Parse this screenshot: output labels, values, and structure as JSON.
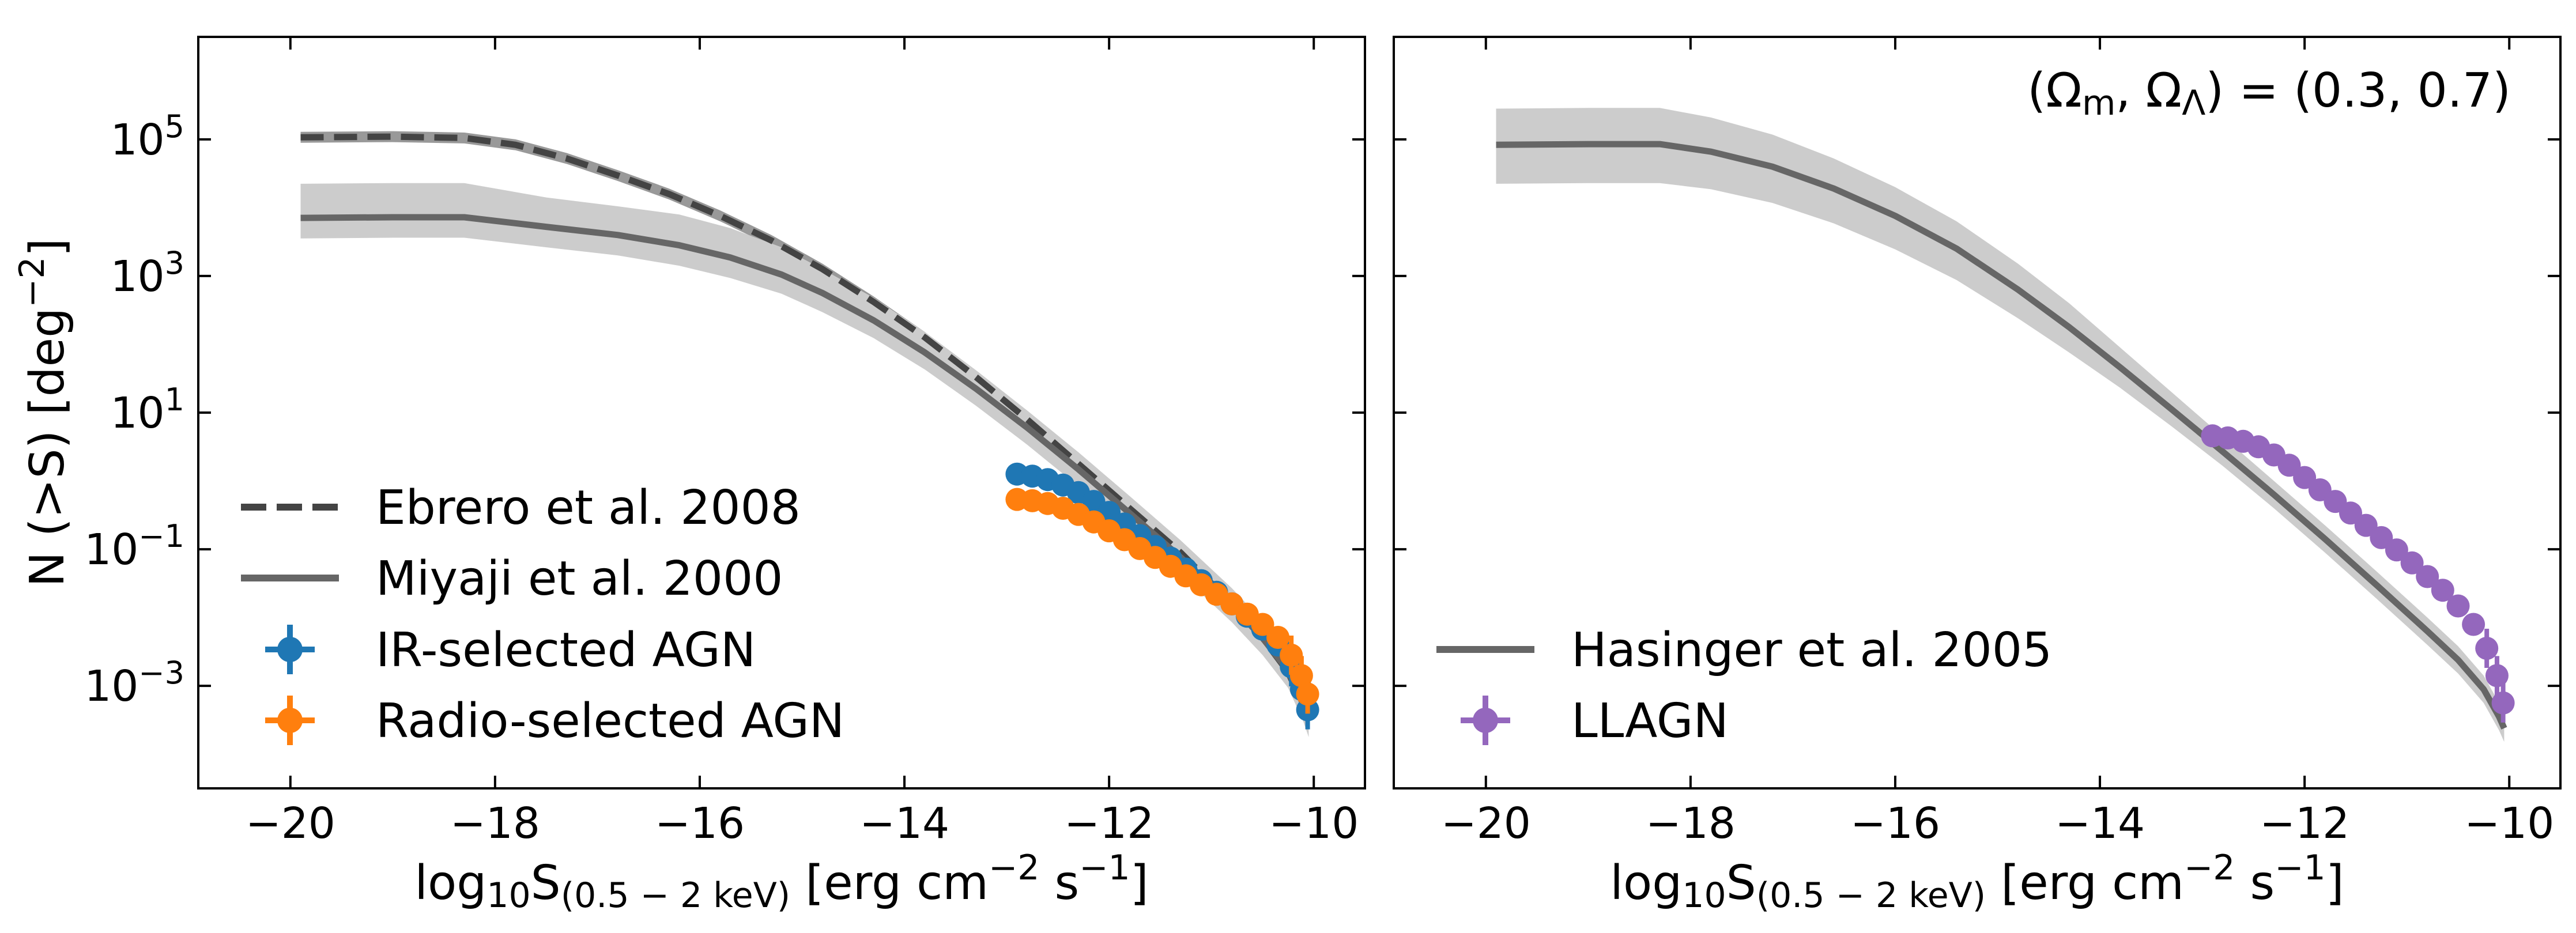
{
  "chart_data": [
    {
      "type": "line",
      "panel": "left",
      "xlabel": "log10S(0.5-2 keV) [erg cm^-2 s^-1]",
      "ylabel": "N (>S) [deg^-2]",
      "xlim": [
        -20.9,
        -9.5
      ],
      "ylim_log10": [
        -4.5,
        6.5
      ],
      "yscale": "log",
      "xticks": [
        -20,
        -18,
        -16,
        -14,
        -12,
        -10
      ],
      "xtick_labels": [
        "−20",
        "−18",
        "−16",
        "−14",
        "−12",
        "−10"
      ],
      "yticks_log10": [
        5,
        3,
        1,
        -1,
        -3
      ],
      "ytick_exponents": [
        "5",
        "3",
        "1",
        "−1",
        "−3"
      ],
      "ytick_base": "10",
      "legend_position": "lower-left",
      "legend": [
        "Ebrero et al. 2008",
        "Miyaji et al. 2000",
        "IR-selected AGN",
        "Radio-selected AGN"
      ],
      "series": [
        {
          "name": "Ebrero et al. 2008",
          "style": "dashed",
          "color": "#444444",
          "x": [
            -19.9,
            -19,
            -18.3,
            -17.8,
            -17.3,
            -16.8,
            -16.3,
            -15.8,
            -15.3,
            -14.8,
            -14.3,
            -13.8,
            -13.3,
            -12.8,
            -12.3,
            -11.8,
            -11.3,
            -10.8,
            -10.5,
            -10.25,
            -10.1,
            -10.05
          ],
          "log10_y": [
            5.03,
            5.04,
            5.02,
            4.92,
            4.72,
            4.47,
            4.2,
            3.88,
            3.52,
            3.1,
            2.62,
            2.1,
            1.52,
            0.9,
            0.25,
            -0.4,
            -1.05,
            -1.8,
            -2.3,
            -2.8,
            -3.3,
            -3.5
          ],
          "band": {
            "color": "#999999",
            "x": [
              -19.9,
              -19,
              -18.3,
              -17.8,
              -17.3,
              -16.8,
              -16.3,
              -15.8,
              -15.3,
              -14.8,
              -14.3,
              -13.8,
              -13.3,
              -12.8,
              -12.3,
              -11.8,
              -11.3,
              -10.8,
              -10.5,
              -10.25,
              -10.1,
              -10.05
            ],
            "log10_lower": [
              4.95,
              4.96,
              4.94,
              4.84,
              4.64,
              4.39,
              4.12,
              3.8,
              3.44,
              3.02,
              2.54,
              2.02,
              1.44,
              0.82,
              0.17,
              -0.48,
              -1.13,
              -1.88,
              -2.38,
              -2.88,
              -3.38,
              -3.58
            ],
            "log10_upper": [
              5.11,
              5.12,
              5.1,
              5.0,
              4.8,
              4.55,
              4.28,
              3.96,
              3.6,
              3.18,
              2.7,
              2.18,
              1.6,
              0.98,
              0.33,
              -0.32,
              -0.97,
              -1.72,
              -2.22,
              -2.72,
              -3.22,
              -3.42
            ]
          }
        },
        {
          "name": "Miyaji et al. 2000",
          "style": "solid",
          "color": "#666666",
          "x": [
            -19.9,
            -19,
            -18.3,
            -17.5,
            -16.8,
            -16.2,
            -15.7,
            -15.2,
            -14.8,
            -14.3,
            -13.8,
            -13.3,
            -12.8,
            -12.3,
            -11.8,
            -11.3,
            -10.8,
            -10.5,
            -10.25,
            -10.1,
            -10.05
          ],
          "log10_y": [
            3.85,
            3.86,
            3.86,
            3.72,
            3.6,
            3.45,
            3.27,
            3.02,
            2.75,
            2.35,
            1.88,
            1.35,
            0.78,
            0.17,
            -0.47,
            -1.12,
            -1.82,
            -2.3,
            -2.78,
            -3.28,
            -3.5
          ],
          "band": {
            "color": "#cccccc",
            "x": [
              -19.9,
              -19,
              -18.3,
              -17.5,
              -16.8,
              -16.2,
              -15.7,
              -15.2,
              -14.8,
              -14.3,
              -13.8,
              -13.3,
              -12.8,
              -12.3,
              -11.8,
              -11.3,
              -10.8,
              -10.5,
              -10.25,
              -10.1,
              -10.05
            ],
            "log10_lower": [
              3.55,
              3.56,
              3.56,
              3.42,
              3.3,
              3.15,
              2.97,
              2.74,
              2.47,
              2.09,
              1.63,
              1.1,
              0.53,
              -0.08,
              -0.72,
              -1.37,
              -2.07,
              -2.55,
              -3.03,
              -3.53,
              -3.75
            ],
            "log10_upper": [
              4.35,
              4.36,
              4.36,
              4.15,
              4.02,
              3.9,
              3.7,
              3.42,
              3.1,
              2.68,
              2.18,
              1.62,
              1.03,
              0.42,
              -0.22,
              -0.87,
              -1.57,
              -2.05,
              -2.53,
              -3.03,
              -3.25
            ]
          }
        },
        {
          "name": "IR-selected AGN",
          "style": "errorbar",
          "color": "#1f77b4",
          "x": [
            -12.9,
            -12.75,
            -12.6,
            -12.45,
            -12.3,
            -12.15,
            -12.0,
            -11.85,
            -11.7,
            -11.55,
            -11.4,
            -11.25,
            -11.1,
            -10.95,
            -10.8,
            -10.65,
            -10.5,
            -10.35,
            -10.22,
            -10.12,
            -10.06
          ],
          "log10_y": [
            0.1,
            0.07,
            0.02,
            -0.06,
            -0.17,
            -0.3,
            -0.46,
            -0.63,
            -0.8,
            -0.96,
            -1.13,
            -1.29,
            -1.46,
            -1.63,
            -1.8,
            -1.98,
            -2.17,
            -2.4,
            -2.72,
            -3.05,
            -3.35
          ]
        },
        {
          "name": "Radio-selected AGN",
          "style": "errorbar",
          "color": "#ff7f0e",
          "x": [
            -12.9,
            -12.75,
            -12.6,
            -12.45,
            -12.3,
            -12.15,
            -12.0,
            -11.85,
            -11.7,
            -11.55,
            -11.4,
            -11.25,
            -11.1,
            -10.95,
            -10.8,
            -10.65,
            -10.5,
            -10.35,
            -10.22,
            -10.12,
            -10.06
          ],
          "log10_y": [
            -0.27,
            -0.29,
            -0.33,
            -0.4,
            -0.49,
            -0.6,
            -0.73,
            -0.86,
            -0.99,
            -1.12,
            -1.25,
            -1.39,
            -1.52,
            -1.66,
            -1.8,
            -1.95,
            -2.1,
            -2.29,
            -2.55,
            -2.85,
            -3.12
          ]
        }
      ]
    },
    {
      "type": "line",
      "panel": "right",
      "xlabel": "log10S(0.5-2 keV) [erg cm^-2 s^-1]",
      "xlim": [
        -20.9,
        -9.5
      ],
      "ylim_log10": [
        -4.5,
        6.5
      ],
      "yscale": "log",
      "xticks": [
        -20,
        -18,
        -16,
        -14,
        -12,
        -10
      ],
      "xtick_labels": [
        "−20",
        "−18",
        "−16",
        "−14",
        "−12",
        "−10"
      ],
      "annotation": "(Ωm, ΩΛ) = (0.3, 0.7)",
      "legend_position": "lower-left",
      "legend": [
        "Hasinger et al. 2005",
        "LLAGN"
      ],
      "series": [
        {
          "name": "Hasinger et al. 2005",
          "style": "solid",
          "color": "#666666",
          "x": [
            -19.9,
            -19,
            -18.3,
            -17.8,
            -17.2,
            -16.6,
            -16.0,
            -15.4,
            -14.8,
            -14.3,
            -13.8,
            -13.3,
            -12.8,
            -12.3,
            -11.8,
            -11.3,
            -10.8,
            -10.5,
            -10.25,
            -10.1,
            -10.05
          ],
          "log10_y": [
            4.92,
            4.93,
            4.93,
            4.82,
            4.6,
            4.28,
            3.88,
            3.4,
            2.8,
            2.25,
            1.66,
            1.05,
            0.43,
            -0.2,
            -0.85,
            -1.52,
            -2.2,
            -2.62,
            -3.05,
            -3.45,
            -3.62
          ],
          "band": {
            "color": "#cccccc",
            "x": [
              -19.9,
              -19,
              -18.3,
              -17.8,
              -17.2,
              -16.6,
              -16.0,
              -15.4,
              -14.8,
              -14.3,
              -13.8,
              -13.3,
              -12.8,
              -12.3,
              -11.8,
              -11.3,
              -10.8,
              -10.5,
              -10.25,
              -10.1,
              -10.05
            ],
            "log10_lower": [
              4.35,
              4.36,
              4.36,
              4.27,
              4.07,
              3.77,
              3.39,
              2.94,
              2.38,
              1.88,
              1.36,
              0.8,
              0.22,
              -0.4,
              -1.05,
              -1.72,
              -2.4,
              -2.82,
              -3.25,
              -3.65,
              -3.82
            ],
            "log10_upper": [
              5.45,
              5.46,
              5.46,
              5.32,
              5.07,
              4.72,
              4.3,
              3.8,
              3.18,
              2.6,
              1.95,
              1.3,
              0.65,
              0.0,
              -0.65,
              -1.32,
              -2.0,
              -2.42,
              -2.85,
              -3.25,
              -3.42
            ]
          }
        },
        {
          "name": "LLAGN",
          "style": "errorbar",
          "color": "#9467bd",
          "x": [
            -12.9,
            -12.75,
            -12.6,
            -12.45,
            -12.3,
            -12.15,
            -12.0,
            -11.85,
            -11.7,
            -11.55,
            -11.4,
            -11.25,
            -11.1,
            -10.95,
            -10.8,
            -10.65,
            -10.5,
            -10.35,
            -10.22,
            -10.12,
            -10.06
          ],
          "log10_y": [
            0.66,
            0.63,
            0.58,
            0.5,
            0.38,
            0.23,
            0.05,
            -0.13,
            -0.3,
            -0.47,
            -0.65,
            -0.83,
            -1.01,
            -1.2,
            -1.4,
            -1.6,
            -1.83,
            -2.1,
            -2.45,
            -2.85,
            -3.25
          ]
        }
      ]
    }
  ]
}
